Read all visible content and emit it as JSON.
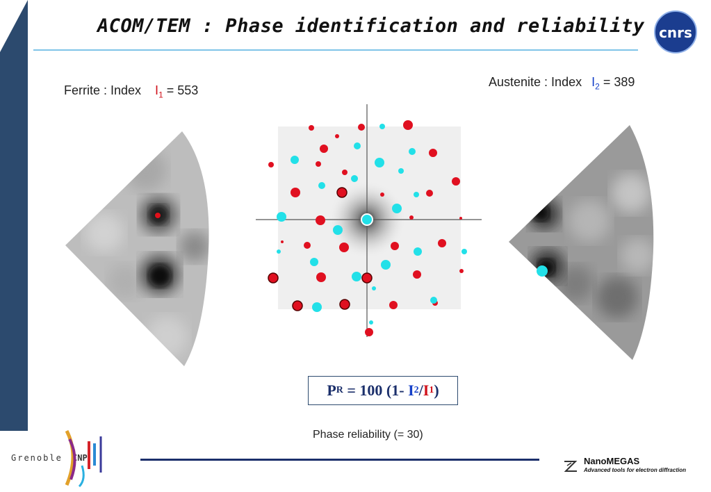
{
  "title": "ACOM/TEM : Phase identification and reliability",
  "logo_cnrs": "cnrs",
  "ferrite": {
    "text": "Ferrite : Index",
    "index_symbol": "I",
    "index_sub": "1",
    "index_value": "= 553"
  },
  "austenite": {
    "text": "Austenite : Index",
    "index_symbol": "I",
    "index_sub": "2",
    "index_value": "= 389"
  },
  "formula": {
    "lhs": "P",
    "lhs_sub": "R",
    "mid": " = 100 (1- ",
    "i2": "I",
    "i2_sub": "2",
    "slash": "/",
    "i1": "I",
    "i1_sub": "1",
    "end": ")"
  },
  "reliability_label": "Phase reliability (= 30)",
  "grenoble": {
    "left": "Grenoble",
    "box": "INP"
  },
  "nanomegas": {
    "name": "NanoMEGAS",
    "tagline": "Advanced tools for electron diffraction"
  },
  "colors": {
    "ferrite_spot": "#d0101a",
    "austenite_spot": "#22e0e8",
    "band": "#2c4a6e"
  },
  "icons": [
    "cnrs-logo",
    "grenoble-inp-logo",
    "nanomegas-logo"
  ]
}
